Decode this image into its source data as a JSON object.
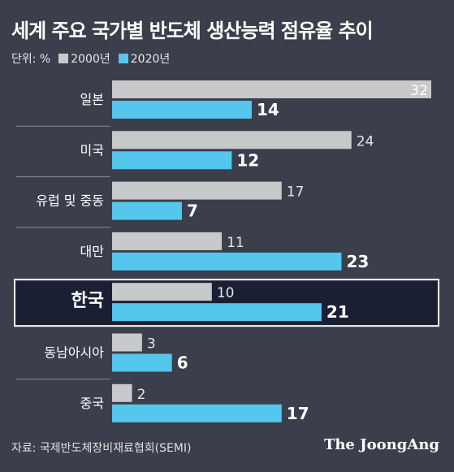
{
  "title": "세계 주요 국가별 반도체 생산능력 점유율 추이",
  "unit_label": "단위: %",
  "source": "자료: 국제반도체장비재료협회(SEMI)",
  "brand": "The JoongAng",
  "colors": {
    "background": "#3b3f4b",
    "series_2000": "#c8c9cb",
    "series_2020": "#55c6ec",
    "highlight_bg": "#1b1f33",
    "highlight_border": "#ffffff"
  },
  "chart_data": {
    "type": "bar",
    "orientation": "horizontal",
    "title": "세계 주요 국가별 반도체 생산능력 점유율 추이",
    "categories": [
      "일본",
      "미국",
      "유럽 및 중동",
      "대만",
      "한국",
      "동남아시아",
      "중국"
    ],
    "series": [
      {
        "name": "2000년",
        "values": [
          32,
          24,
          17,
          11,
          10,
          3,
          2
        ]
      },
      {
        "name": "2020년",
        "values": [
          14,
          12,
          7,
          23,
          21,
          6,
          17
        ]
      }
    ],
    "highlight_category": "한국",
    "xlim": [
      0,
      32
    ],
    "grid": false,
    "legend": "top-left"
  }
}
